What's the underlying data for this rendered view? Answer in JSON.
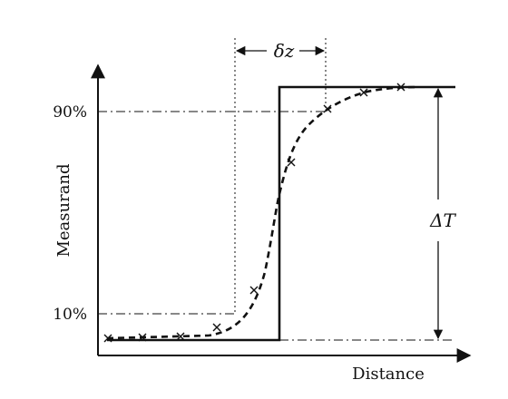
{
  "labels": {
    "y_axis_title": "Measurand",
    "x_axis_title": "Distance",
    "pct_90": "90%",
    "pct_10": "10%",
    "delta_z": "δz",
    "delta_T": "ΔT"
  },
  "curves": {
    "step": "solid line",
    "response": "dashed line",
    "samples": "× markers"
  }
}
